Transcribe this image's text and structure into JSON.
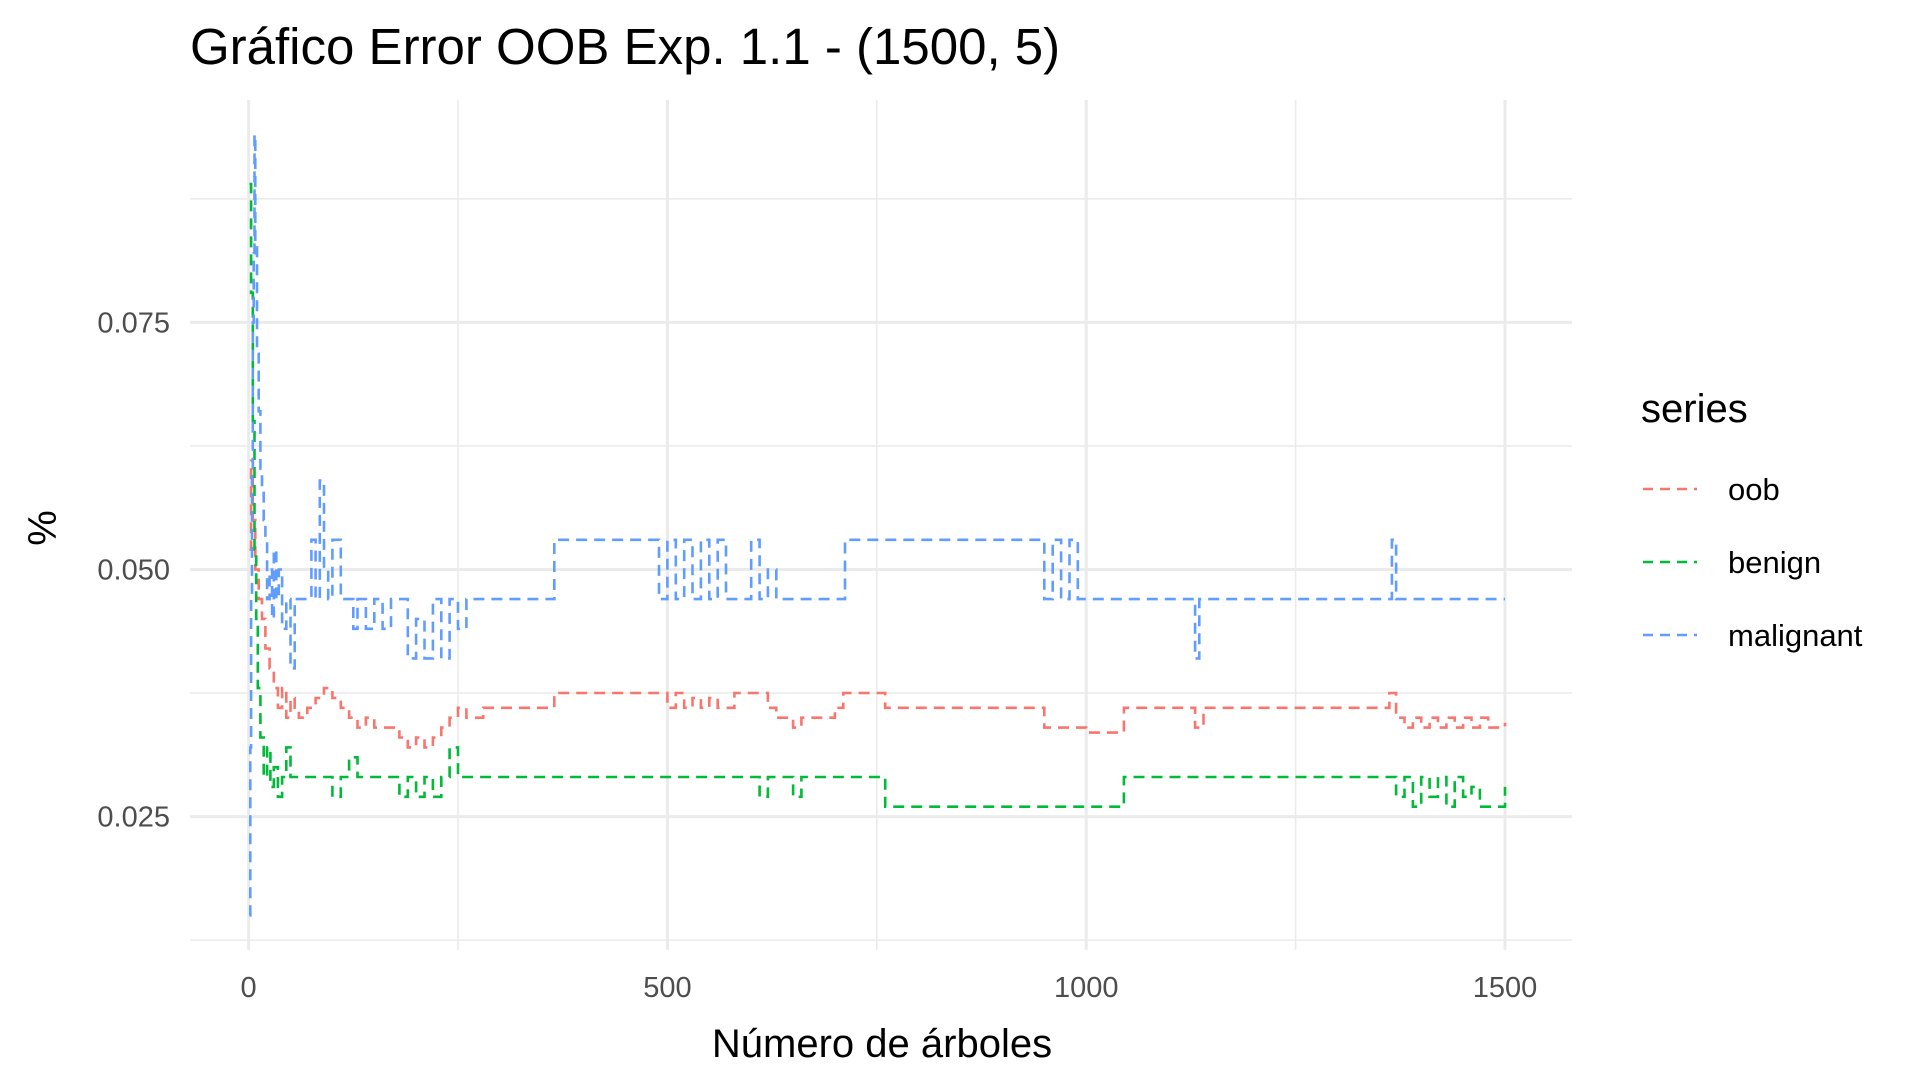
{
  "chart_data": {
    "type": "line",
    "title": "Gráfico Error OOB Exp. 1.1 - (1500, 5)",
    "xlabel": "Número de árboles",
    "ylabel": "%",
    "xlim": [
      -70,
      1580
    ],
    "ylim": [
      0.0115,
      0.0975
    ],
    "x_ticks": [
      0,
      500,
      1000,
      1500
    ],
    "x_tick_labels": [
      "0",
      "500",
      "1000",
      "1500"
    ],
    "y_ticks": [
      0.025,
      0.05,
      0.075
    ],
    "y_tick_labels": [
      "0.025",
      "0.050",
      "0.075"
    ],
    "grid": true,
    "legend": {
      "title": "series",
      "position": "right"
    },
    "series": [
      {
        "name": "oob",
        "color": "#F8766D",
        "points": [
          [
            1,
            0.052
          ],
          [
            3,
            0.061
          ],
          [
            5,
            0.055
          ],
          [
            8,
            0.05
          ],
          [
            12,
            0.047
          ],
          [
            16,
            0.045
          ],
          [
            20,
            0.042
          ],
          [
            25,
            0.04
          ],
          [
            30,
            0.038
          ],
          [
            35,
            0.036
          ],
          [
            40,
            0.038
          ],
          [
            45,
            0.035
          ],
          [
            50,
            0.037
          ],
          [
            55,
            0.036
          ],
          [
            60,
            0.035
          ],
          [
            70,
            0.036
          ],
          [
            80,
            0.037
          ],
          [
            90,
            0.038
          ],
          [
            100,
            0.037
          ],
          [
            110,
            0.036
          ],
          [
            120,
            0.035
          ],
          [
            130,
            0.034
          ],
          [
            140,
            0.035
          ],
          [
            150,
            0.034
          ],
          [
            160,
            0.034
          ],
          [
            170,
            0.034
          ],
          [
            180,
            0.033
          ],
          [
            190,
            0.032
          ],
          [
            200,
            0.033
          ],
          [
            210,
            0.032
          ],
          [
            220,
            0.033
          ],
          [
            230,
            0.034
          ],
          [
            240,
            0.035
          ],
          [
            250,
            0.036
          ],
          [
            260,
            0.035
          ],
          [
            270,
            0.035
          ],
          [
            280,
            0.036
          ],
          [
            300,
            0.036
          ],
          [
            320,
            0.036
          ],
          [
            340,
            0.036
          ],
          [
            365,
            0.0375
          ],
          [
            400,
            0.0375
          ],
          [
            450,
            0.0375
          ],
          [
            490,
            0.0375
          ],
          [
            500,
            0.036
          ],
          [
            510,
            0.0375
          ],
          [
            520,
            0.036
          ],
          [
            530,
            0.037
          ],
          [
            540,
            0.036
          ],
          [
            550,
            0.037
          ],
          [
            560,
            0.036
          ],
          [
            580,
            0.0375
          ],
          [
            600,
            0.0375
          ],
          [
            610,
            0.0375
          ],
          [
            620,
            0.036
          ],
          [
            630,
            0.035
          ],
          [
            650,
            0.034
          ],
          [
            660,
            0.035
          ],
          [
            700,
            0.036
          ],
          [
            710,
            0.0375
          ],
          [
            740,
            0.0375
          ],
          [
            760,
            0.036
          ],
          [
            800,
            0.036
          ],
          [
            900,
            0.036
          ],
          [
            950,
            0.034
          ],
          [
            980,
            0.034
          ],
          [
            1000,
            0.0335
          ],
          [
            1040,
            0.0335
          ],
          [
            1045,
            0.036
          ],
          [
            1100,
            0.036
          ],
          [
            1130,
            0.034
          ],
          [
            1140,
            0.036
          ],
          [
            1200,
            0.036
          ],
          [
            1300,
            0.036
          ],
          [
            1360,
            0.036
          ],
          [
            1362,
            0.0375
          ],
          [
            1370,
            0.035
          ],
          [
            1380,
            0.034
          ],
          [
            1390,
            0.035
          ],
          [
            1400,
            0.034
          ],
          [
            1410,
            0.035
          ],
          [
            1420,
            0.034
          ],
          [
            1430,
            0.035
          ],
          [
            1440,
            0.034
          ],
          [
            1450,
            0.035
          ],
          [
            1460,
            0.034
          ],
          [
            1470,
            0.035
          ],
          [
            1480,
            0.034
          ],
          [
            1490,
            0.034
          ],
          [
            1500,
            0.0345
          ]
        ]
      },
      {
        "name": "benign",
        "color": "#00BA38",
        "points": [
          [
            1,
            0.089
          ],
          [
            3,
            0.078
          ],
          [
            5,
            0.065
          ],
          [
            7,
            0.052
          ],
          [
            9,
            0.045
          ],
          [
            11,
            0.038
          ],
          [
            14,
            0.033
          ],
          [
            18,
            0.029
          ],
          [
            22,
            0.032
          ],
          [
            26,
            0.028
          ],
          [
            30,
            0.03
          ],
          [
            35,
            0.027
          ],
          [
            40,
            0.029
          ],
          [
            45,
            0.032
          ],
          [
            50,
            0.029
          ],
          [
            60,
            0.029
          ],
          [
            80,
            0.029
          ],
          [
            100,
            0.027
          ],
          [
            110,
            0.029
          ],
          [
            120,
            0.031
          ],
          [
            130,
            0.029
          ],
          [
            140,
            0.029
          ],
          [
            160,
            0.029
          ],
          [
            180,
            0.027
          ],
          [
            190,
            0.029
          ],
          [
            200,
            0.027
          ],
          [
            210,
            0.029
          ],
          [
            220,
            0.027
          ],
          [
            230,
            0.029
          ],
          [
            240,
            0.032
          ],
          [
            250,
            0.029
          ],
          [
            260,
            0.029
          ],
          [
            300,
            0.029
          ],
          [
            400,
            0.029
          ],
          [
            500,
            0.029
          ],
          [
            600,
            0.029
          ],
          [
            610,
            0.027
          ],
          [
            620,
            0.029
          ],
          [
            640,
            0.029
          ],
          [
            650,
            0.027
          ],
          [
            660,
            0.029
          ],
          [
            700,
            0.029
          ],
          [
            755,
            0.029
          ],
          [
            760,
            0.026
          ],
          [
            800,
            0.026
          ],
          [
            900,
            0.026
          ],
          [
            1000,
            0.026
          ],
          [
            1040,
            0.026
          ],
          [
            1045,
            0.029
          ],
          [
            1100,
            0.029
          ],
          [
            1200,
            0.029
          ],
          [
            1300,
            0.029
          ],
          [
            1360,
            0.029
          ],
          [
            1370,
            0.027
          ],
          [
            1380,
            0.029
          ],
          [
            1390,
            0.026
          ],
          [
            1400,
            0.029
          ],
          [
            1410,
            0.027
          ],
          [
            1420,
            0.029
          ],
          [
            1430,
            0.026
          ],
          [
            1440,
            0.029
          ],
          [
            1450,
            0.027
          ],
          [
            1460,
            0.028
          ],
          [
            1470,
            0.026
          ],
          [
            1480,
            0.026
          ],
          [
            1490,
            0.026
          ],
          [
            1500,
            0.028
          ]
        ]
      },
      {
        "name": "malignant",
        "color": "#619CFF",
        "points": [
          [
            1,
            0.015
          ],
          [
            2,
            0.032
          ],
          [
            3,
            0.047
          ],
          [
            4,
            0.06
          ],
          [
            5,
            0.075
          ],
          [
            6,
            0.082
          ],
          [
            7,
            0.094
          ],
          [
            8,
            0.083
          ],
          [
            10,
            0.072
          ],
          [
            12,
            0.066
          ],
          [
            14,
            0.06
          ],
          [
            16,
            0.058
          ],
          [
            18,
            0.055
          ],
          [
            20,
            0.053
          ],
          [
            22,
            0.047
          ],
          [
            25,
            0.05
          ],
          [
            28,
            0.045
          ],
          [
            30,
            0.052
          ],
          [
            33,
            0.047
          ],
          [
            36,
            0.05
          ],
          [
            40,
            0.044
          ],
          [
            45,
            0.047
          ],
          [
            50,
            0.04
          ],
          [
            55,
            0.047
          ],
          [
            60,
            0.047
          ],
          [
            70,
            0.047
          ],
          [
            75,
            0.053
          ],
          [
            80,
            0.047
          ],
          [
            85,
            0.059
          ],
          [
            90,
            0.05
          ],
          [
            95,
            0.047
          ],
          [
            100,
            0.053
          ],
          [
            110,
            0.047
          ],
          [
            120,
            0.047
          ],
          [
            125,
            0.044
          ],
          [
            130,
            0.047
          ],
          [
            140,
            0.044
          ],
          [
            150,
            0.047
          ],
          [
            160,
            0.044
          ],
          [
            170,
            0.047
          ],
          [
            180,
            0.047
          ],
          [
            190,
            0.041
          ],
          [
            200,
            0.045
          ],
          [
            210,
            0.041
          ],
          [
            220,
            0.047
          ],
          [
            230,
            0.041
          ],
          [
            240,
            0.047
          ],
          [
            250,
            0.044
          ],
          [
            260,
            0.047
          ],
          [
            280,
            0.047
          ],
          [
            300,
            0.047
          ],
          [
            360,
            0.047
          ],
          [
            365,
            0.053
          ],
          [
            400,
            0.053
          ],
          [
            480,
            0.053
          ],
          [
            490,
            0.047
          ],
          [
            500,
            0.053
          ],
          [
            510,
            0.047
          ],
          [
            520,
            0.053
          ],
          [
            530,
            0.047
          ],
          [
            540,
            0.053
          ],
          [
            550,
            0.047
          ],
          [
            560,
            0.053
          ],
          [
            570,
            0.047
          ],
          [
            600,
            0.053
          ],
          [
            610,
            0.047
          ],
          [
            620,
            0.05
          ],
          [
            630,
            0.047
          ],
          [
            660,
            0.047
          ],
          [
            710,
            0.047
          ],
          [
            712,
            0.053
          ],
          [
            800,
            0.053
          ],
          [
            940,
            0.053
          ],
          [
            950,
            0.047
          ],
          [
            960,
            0.053
          ],
          [
            970,
            0.047
          ],
          [
            980,
            0.053
          ],
          [
            990,
            0.047
          ],
          [
            1000,
            0.047
          ],
          [
            1100,
            0.047
          ],
          [
            1130,
            0.041
          ],
          [
            1135,
            0.047
          ],
          [
            1200,
            0.047
          ],
          [
            1300,
            0.047
          ],
          [
            1360,
            0.047
          ],
          [
            1365,
            0.053
          ],
          [
            1370,
            0.047
          ],
          [
            1400,
            0.047
          ],
          [
            1500,
            0.047
          ]
        ]
      }
    ]
  }
}
